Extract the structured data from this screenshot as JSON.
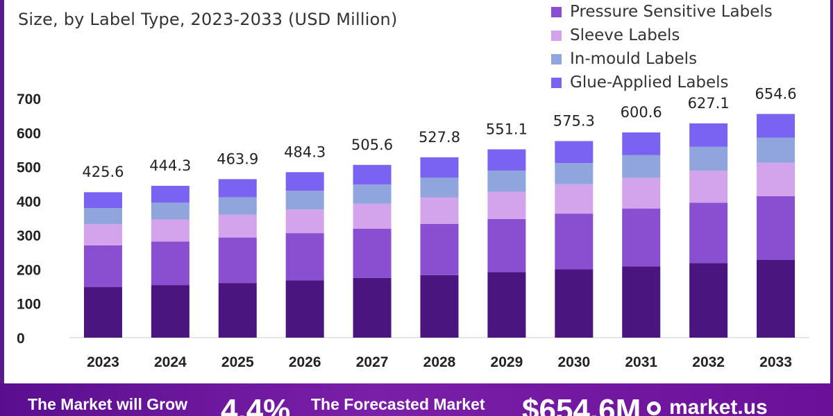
{
  "header": {
    "subtitle": "Size, by Label Type, 2023-2033 (USD Million)"
  },
  "legend": [
    {
      "label": "Pressure Sensitive Labels",
      "color": "#8a4fd1"
    },
    {
      "label": "Sleeve Labels",
      "color": "#d3a4ec"
    },
    {
      "label": "In-mould Labels",
      "color": "#8fa5dc"
    },
    {
      "label": "Glue-Applied Labels",
      "color": "#7a63f0"
    }
  ],
  "chart_data": {
    "type": "bar",
    "stacked": true,
    "categories": [
      "2023",
      "2024",
      "2025",
      "2026",
      "2027",
      "2028",
      "2029",
      "2030",
      "2031",
      "2032",
      "2033"
    ],
    "totals": [
      425.6,
      444.3,
      463.9,
      484.3,
      505.6,
      527.8,
      551.1,
      575.3,
      600.6,
      627.1,
      654.6
    ],
    "ylim": [
      0,
      700
    ],
    "yticks": [
      0,
      100,
      200,
      300,
      400,
      500,
      600,
      700
    ],
    "series": [
      {
        "name": "",
        "color": "#4b1580",
        "values": [
          148,
          154,
          160,
          168,
          175,
          183,
          192,
          200,
          208,
          218,
          228
        ]
      },
      {
        "name": "Pressure Sensitive Labels",
        "color": "#8a4fd1",
        "values": [
          122,
          127,
          133,
          138,
          144,
          150,
          155,
          163,
          170,
          177,
          186
        ]
      },
      {
        "name": "Sleeve Labels",
        "color": "#d3a4ec",
        "values": [
          62,
          65,
          67,
          69,
          73,
          77,
          80,
          86,
          90,
          94,
          98
        ]
      },
      {
        "name": "In-mould Labels",
        "color": "#8fa5dc",
        "values": [
          47,
          49,
          51,
          55,
          56,
          58,
          62,
          62,
          66,
          70,
          73
        ]
      },
      {
        "name": "Glue-Applied Labels",
        "color": "#7a63f0",
        "values": [
          46.6,
          49.3,
          52.9,
          54.3,
          57.6,
          59.8,
          62.1,
          64.3,
          66.6,
          68.1,
          69.6
        ]
      }
    ],
    "grid": false
  },
  "footer": {
    "grow_text": "The Market will Grow",
    "cagr": "4.4%",
    "forecast_text": "The Forecasted Market",
    "value": "$654.6M",
    "brand": "market.us"
  }
}
